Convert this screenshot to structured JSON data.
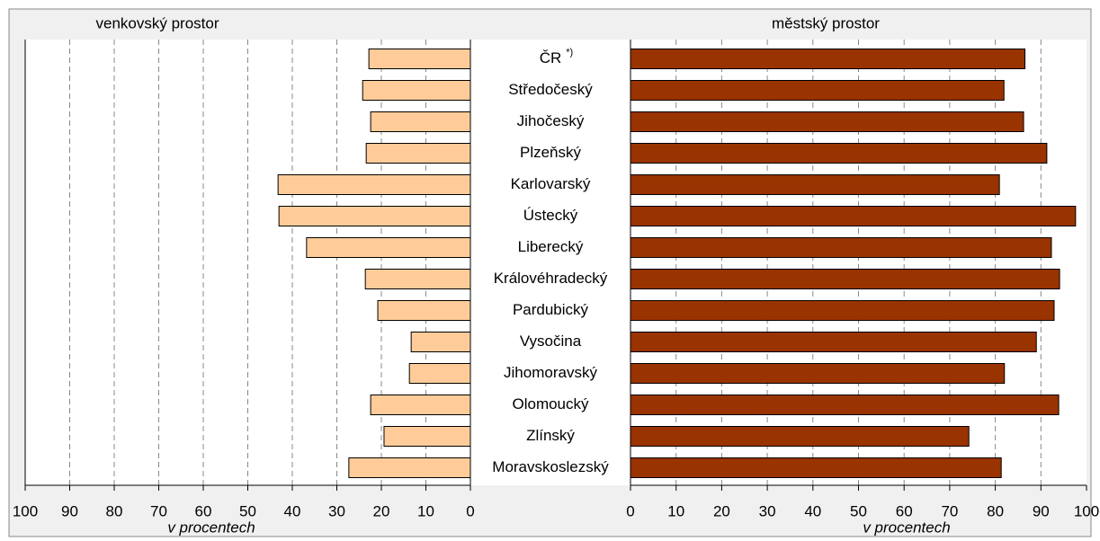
{
  "chart_data": {
    "type": "butterfly-bar",
    "categories": [
      "ČR",
      "Středočeský",
      "Jihočeský",
      "Plzeňský",
      "Karlovarský",
      "Ústecký",
      "Liberecký",
      "Královéhradecký",
      "Pardubický",
      "Vysočina",
      "Jihomoravský",
      "Olomoucký",
      "Zlínský",
      "Moravskoslezský"
    ],
    "category_note": "*)",
    "grid": true,
    "series": [
      {
        "name": "venkovský prostor",
        "color": "#ffcc99",
        "xlabel": "v procentech",
        "values": [
          22.8,
          24.2,
          22.4,
          23.4,
          43.2,
          43.0,
          36.8,
          23.6,
          20.8,
          13.3,
          13.7,
          22.4,
          19.4,
          27.3
        ],
        "xlim": [
          100,
          0
        ],
        "xticks": [
          100,
          90,
          80,
          70,
          60,
          50,
          40,
          30,
          20,
          10,
          0
        ]
      },
      {
        "name": "městský prostor",
        "color": "#993300",
        "xlabel": "v procentech",
        "values": [
          86.5,
          81.9,
          86.2,
          91.3,
          80.9,
          97.6,
          92.3,
          94.1,
          92.9,
          89.0,
          82.0,
          93.9,
          74.2,
          81.3
        ],
        "xlim": [
          0,
          100
        ],
        "xticks": [
          0,
          10,
          20,
          30,
          40,
          50,
          60,
          70,
          80,
          90,
          100
        ]
      }
    ]
  }
}
